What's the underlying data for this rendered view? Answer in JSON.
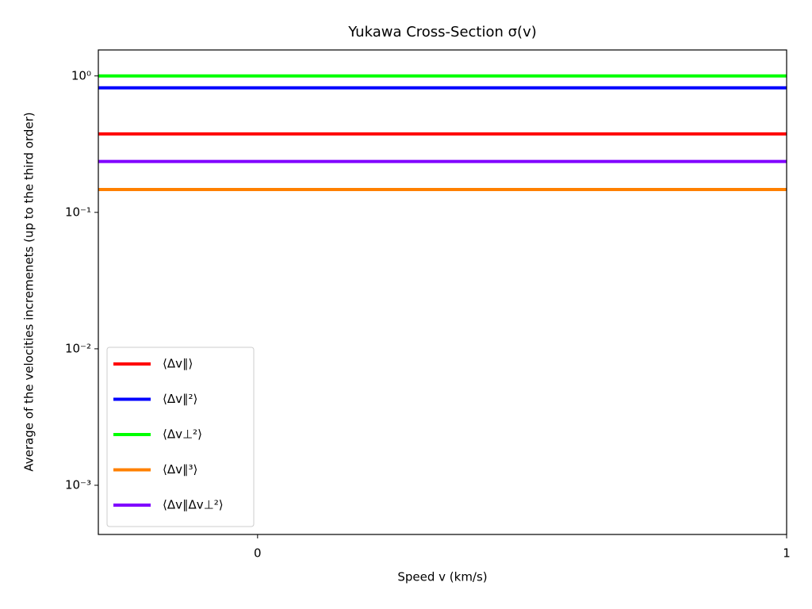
{
  "chart_data": {
    "type": "line",
    "title": "Yukawa Cross-Section σ(v)",
    "x_label": "Speed v (km/s)",
    "y_label": "Average of the velocities incremenets (up to the third order)",
    "x": [
      -0.301,
      1
    ],
    "xlim": [
      -0.301,
      1
    ],
    "xticks": [
      0,
      1
    ],
    "ylim": [
      0.000436,
      1.55
    ],
    "yticks": [
      {
        "value": 1,
        "label": "10⁰"
      },
      {
        "value": 0.1,
        "label": "10⁻¹"
      },
      {
        "value": 0.01,
        "label": "10⁻²"
      },
      {
        "value": 0.001,
        "label": "10⁻³"
      }
    ],
    "y_log": true,
    "legend_position": "lower left",
    "series": [
      {
        "name": "⟨Δv∥⟩",
        "color": "#ff0000",
        "values": [
          0.376,
          0.376
        ]
      },
      {
        "name": "⟨Δv∥²⟩",
        "color": "#0000ff",
        "values": [
          0.818,
          0.818
        ]
      },
      {
        "name": "⟨Δv⊥²⟩",
        "color": "#00ff00",
        "values": [
          1.0,
          1.0
        ]
      },
      {
        "name": "⟨Δv∥³⟩",
        "color": "#ff8000",
        "values": [
          0.147,
          0.147
        ]
      },
      {
        "name": "⟨Δv∥Δv⊥²⟩",
        "color": "#8000ff",
        "values": [
          0.236,
          0.236
        ]
      }
    ]
  }
}
